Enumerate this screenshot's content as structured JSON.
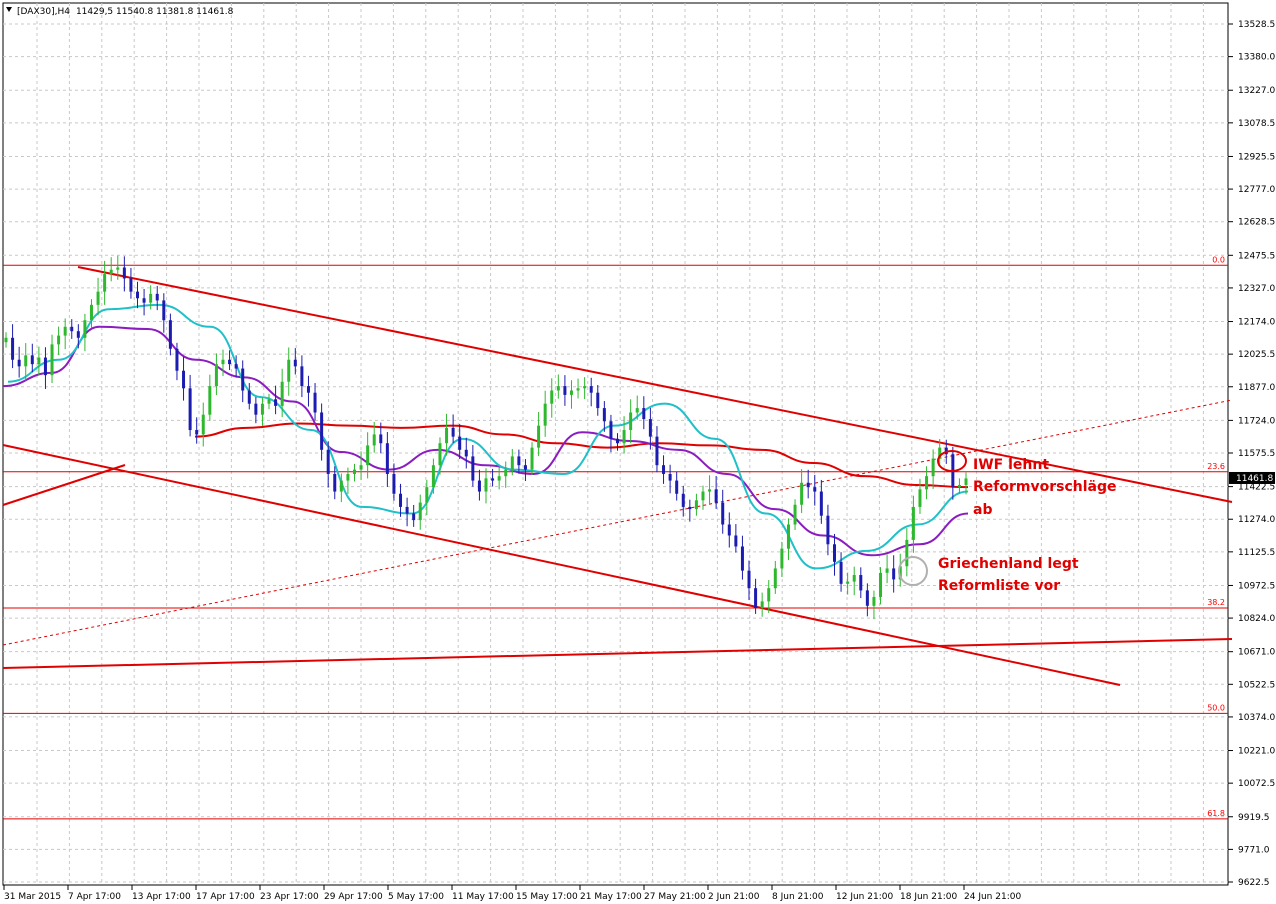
{
  "header": {
    "symbol": "DAX30",
    "timeframe": "H4",
    "quote": "11429,5 11540.8 11381.8 11461.8"
  },
  "chart_data": {
    "type": "candlestick",
    "ylim": [
      9622.5,
      13600
    ],
    "y_ticks": [
      "13528.5",
      "13380.0",
      "13227.0",
      "13078.5",
      "12925.5",
      "12777.0",
      "12628.5",
      "12475.5",
      "12327.0",
      "12174.0",
      "12025.5",
      "11877.0",
      "11724.0",
      "11575.5",
      "11422.5",
      "11274.0",
      "11125.5",
      "10972.5",
      "10824.0",
      "10671.0",
      "10522.5",
      "10374.0",
      "10221.0",
      "10072.5",
      "9919.5",
      "9771.0",
      "9622.5"
    ],
    "x_ticks": [
      "31 Mar 2015",
      "7 Apr 17:00",
      "13 Apr 17:00",
      "17 Apr 17:00",
      "23 Apr 17:00",
      "29 Apr 17:00",
      "5 May 17:00",
      "11 May 17:00",
      "15 May 17:00",
      "21 May 17:00",
      "27 May 21:00",
      "2 Jun 21:00",
      "8 Jun 21:00",
      "12 Jun 21:00",
      "18 Jun 21:00",
      "24 Jun 21:00"
    ],
    "grid": true,
    "current_price": "11461.8",
    "closes": [
      12100,
      12000,
      11970,
      12020,
      11980,
      12010,
      11930,
      12070,
      12110,
      12150,
      12130,
      12100,
      12180,
      12250,
      12310,
      12390,
      12410,
      12420,
      12370,
      12310,
      12280,
      12260,
      12300,
      12270,
      12180,
      12050,
      11950,
      11870,
      11680,
      11660,
      11750,
      11880,
      11980,
      12000,
      11980,
      11960,
      11860,
      11800,
      11750,
      11800,
      11820,
      11790,
      11900,
      12000,
      11970,
      11880,
      11850,
      11760,
      11590,
      11480,
      11400,
      11450,
      11480,
      11500,
      11520,
      11610,
      11660,
      11620,
      11480,
      11390,
      11330,
      11300,
      11270,
      11350,
      11420,
      11520,
      11620,
      11690,
      11650,
      11590,
      11560,
      11450,
      11400,
      11460,
      11450,
      11470,
      11500,
      11560,
      11520,
      11500,
      11600,
      11700,
      11800,
      11860,
      11880,
      11840,
      11860,
      11870,
      11880,
      11850,
      11780,
      11720,
      11640,
      11620,
      11680,
      11760,
      11780,
      11730,
      11650,
      11520,
      11480,
      11450,
      11390,
      11330,
      11320,
      11360,
      11400,
      11410,
      11350,
      11250,
      11200,
      11150,
      11040,
      10960,
      10870,
      10900,
      10960,
      11050,
      11140,
      11250,
      11340,
      11440,
      11420,
      11400,
      11290,
      11160,
      11080,
      10980,
      10990,
      11020,
      10950,
      10880,
      10920,
      11030,
      11050,
      11000,
      11060,
      11180,
      11330,
      11410,
      11470,
      11550,
      11600,
      11570,
      11420,
      11430,
      11460
    ],
    "ema_fast_cyan": [
      11900,
      12000,
      12230,
      12250,
      12150,
      11830,
      11680,
      11330,
      11300,
      11640,
      11500,
      11480,
      11700,
      11800,
      11640,
      11300,
      11050,
      11130,
      11250,
      11400
    ],
    "ema_mid_purple": [
      11880,
      11940,
      12150,
      12140,
      12000,
      11920,
      11810,
      11580,
      11500,
      11590,
      11520,
      11480,
      11670,
      11630,
      11590,
      11480,
      11320,
      11200,
      11110,
      11160,
      11300
    ],
    "ema_slow_red": [
      11650,
      11690,
      11710,
      11700,
      11690,
      11700,
      11660,
      11620,
      11600,
      11620,
      11610,
      11590,
      11530,
      11470,
      11430,
      11420
    ],
    "fib_levels": [
      {
        "label": "0.0",
        "price": 12430
      },
      {
        "label": "23.6",
        "price": 11490
      },
      {
        "label": "38.2",
        "price": 10870
      },
      {
        "label": "50.0",
        "price": 10390
      },
      {
        "label": "61.8",
        "price": 9910
      }
    ],
    "annotations": [
      {
        "text": "IWF lehnt",
        "color": "#e00000"
      },
      {
        "text": "Reformvorschläge",
        "color": "#e00000"
      },
      {
        "text": "ab",
        "color": "#e00000"
      },
      {
        "text": "Griechenland legt",
        "color": "#e00000"
      },
      {
        "text": "Reformliste vor",
        "color": "#e00000"
      }
    ],
    "colors": {
      "bull": "#2eb82e",
      "bear": "#1c1cb0",
      "ema_fast": "#20c0c8",
      "ema_mid": "#8a1cc0",
      "ema_slow": "#e00000",
      "trendline": "#e00000",
      "grid": "#c8c8c8"
    }
  }
}
